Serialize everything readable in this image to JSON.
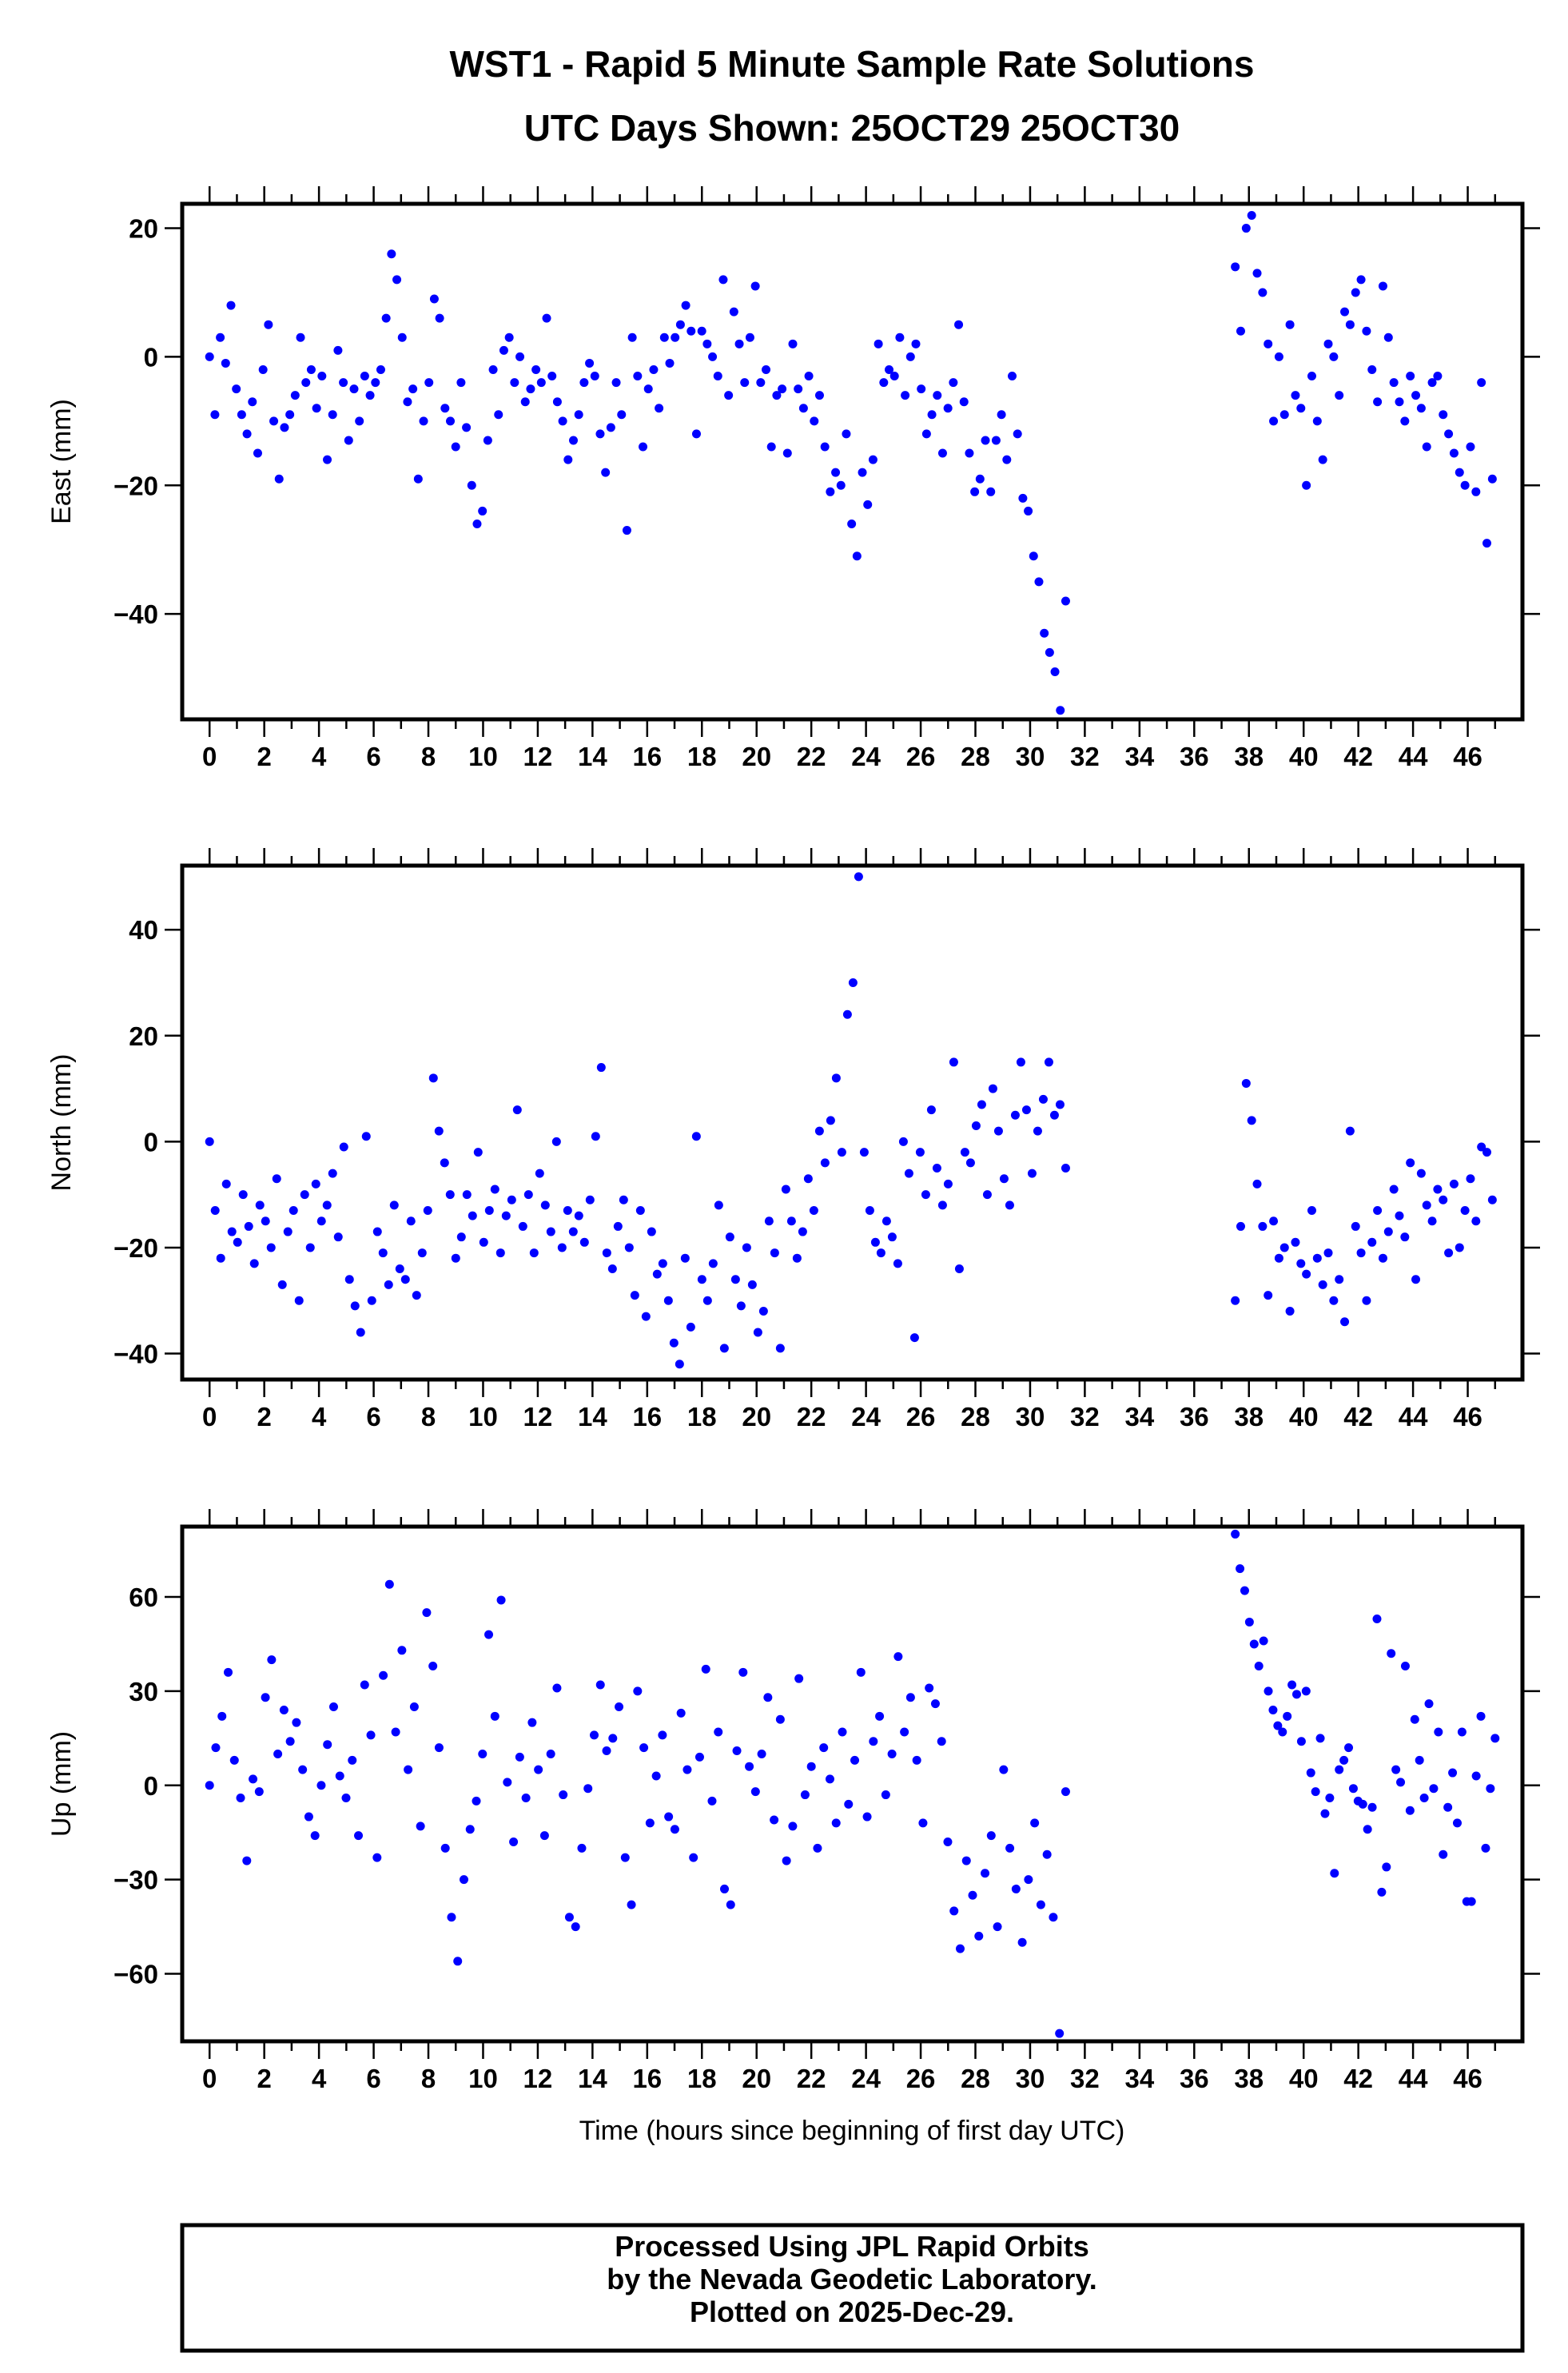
{
  "chart_data": {
    "type": "scatter",
    "title": "WST1 - Rapid 5 Minute Sample Rate Solutions",
    "subtitle": "UTC Days Shown:  25OCT29 25OCT30",
    "xlabel": "Time (hours since beginning of first day UTC)",
    "xlim": [
      -1,
      48
    ],
    "xticks": [
      0,
      2,
      4,
      6,
      8,
      10,
      12,
      14,
      16,
      18,
      20,
      22,
      24,
      26,
      28,
      30,
      32,
      34,
      36,
      38,
      40,
      42,
      44,
      46
    ],
    "point_color": "#0000ff",
    "panels": [
      {
        "name": "East",
        "ylabel": "East (mm)",
        "ylim": [
          -56.4,
          23.8
        ],
        "yticks": [
          20,
          0,
          -20,
          -40
        ],
        "segments": [
          {
            "x_start": 0,
            "x_end": 31.3,
            "y": [
              0,
              -9,
              3,
              -1,
              8,
              -5,
              -9,
              -12,
              -7,
              -15,
              -2,
              5,
              -10,
              -19,
              -11,
              -9,
              -6,
              3,
              -4,
              -2,
              -8,
              -3,
              -16,
              -9,
              1,
              -4,
              -13,
              -5,
              -10,
              -3,
              -6,
              -4,
              -2,
              6,
              16,
              12,
              3,
              -7,
              -5,
              -19,
              -10,
              -4,
              9,
              6,
              -8,
              -10,
              -14,
              -4,
              -11,
              -20,
              -26,
              -24,
              -13,
              -2,
              -9,
              1,
              3,
              -4,
              0,
              -7,
              -5,
              -2,
              -4,
              6,
              -3,
              -7,
              -10,
              -16,
              -13,
              -9,
              -4,
              -1,
              -3,
              -12,
              -18,
              -11,
              -4,
              -9,
              -27,
              3,
              -3,
              -14,
              -5,
              -2,
              -8,
              3,
              -1,
              3,
              5,
              8,
              4,
              -12,
              4,
              2,
              0,
              -3,
              12,
              -6,
              7,
              2,
              -4,
              3,
              11,
              -4,
              -2,
              -14,
              -6,
              -5,
              -15,
              2,
              -5,
              -8,
              -3,
              -10,
              -6,
              -14,
              -21,
              -18,
              -20,
              -12,
              -26,
              -31,
              -18,
              -23,
              -16,
              2,
              -4,
              -2,
              -3,
              3,
              -6,
              0,
              2,
              -5,
              -12,
              -9,
              -6,
              -15,
              -8,
              -4,
              5,
              -7,
              -15,
              -21,
              -19,
              -13,
              -21,
              -13,
              -9,
              -16,
              -3,
              -12,
              -22,
              -24,
              -31,
              -35,
              -43,
              -46,
              -49,
              -55,
              -38
            ]
          },
          {
            "x_start": 37.5,
            "x_end": 46.9,
            "y": [
              14,
              4,
              20,
              22,
              13,
              10,
              2,
              -10,
              0,
              -9,
              5,
              -6,
              -8,
              -20,
              -3,
              -10,
              -16,
              2,
              0,
              -6,
              7,
              5,
              10,
              12,
              4,
              -2,
              -7,
              11,
              3,
              -4,
              -7,
              -10,
              -3,
              -6,
              -8,
              -14,
              -4,
              -3,
              -9,
              -12,
              -15,
              -18,
              -20,
              -14,
              -21,
              -4,
              -29,
              -19
            ]
          }
        ]
      },
      {
        "name": "North",
        "ylabel": "North (mm)",
        "ylim": [
          -44.9,
          52.1
        ],
        "yticks": [
          40,
          20,
          0,
          -20,
          -40
        ],
        "segments": [
          {
            "x_start": 0,
            "x_end": 31.3,
            "y": [
              0,
              -13,
              -22,
              -8,
              -17,
              -19,
              -10,
              -16,
              -23,
              -12,
              -15,
              -20,
              -7,
              -27,
              -17,
              -13,
              -30,
              -10,
              -20,
              -8,
              -15,
              -12,
              -6,
              -18,
              -1,
              -26,
              -31,
              -36,
              1,
              -30,
              -17,
              -21,
              -27,
              -12,
              -24,
              -26,
              -15,
              -29,
              -21,
              -13,
              12,
              2,
              -4,
              -10,
              -22,
              -18,
              -10,
              -14,
              -2,
              -19,
              -13,
              -9,
              -21,
              -14,
              -11,
              6,
              -16,
              -10,
              -21,
              -6,
              -12,
              -17,
              0,
              -20,
              -13,
              -17,
              -14,
              -19,
              -11,
              1,
              14,
              -21,
              -24,
              -16,
              -11,
              -20,
              -29,
              -13,
              -33,
              -17,
              -25,
              -23,
              -30,
              -38,
              -42,
              -22,
              -35,
              1,
              -26,
              -30,
              -23,
              -12,
              -39,
              -18,
              -26,
              -31,
              -20,
              -27,
              -36,
              -32,
              -15,
              -21,
              -39,
              -9,
              -15,
              -22,
              -17,
              -7,
              -13,
              2,
              -4,
              4,
              12,
              -2,
              24,
              30,
              50,
              -2,
              -13,
              -19,
              -21,
              -15,
              -18,
              -23,
              0,
              -6,
              -37,
              -2,
              -10,
              6,
              -5,
              -12,
              -8,
              15,
              -24,
              -2,
              -4,
              3,
              7,
              -10,
              10,
              2,
              -7,
              -12,
              5,
              15,
              6,
              -6,
              2,
              8,
              15,
              5,
              7,
              -5
            ]
          },
          {
            "x_start": 37.5,
            "x_end": 46.9,
            "y": [
              -30,
              -16,
              11,
              4,
              -8,
              -16,
              -29,
              -15,
              -22,
              -20,
              -32,
              -19,
              -23,
              -25,
              -13,
              -22,
              -27,
              -21,
              -30,
              -26,
              -34,
              2,
              -16,
              -21,
              -30,
              -19,
              -13,
              -22,
              -17,
              -9,
              -14,
              -18,
              -4,
              -26,
              -6,
              -12,
              -15,
              -9,
              -11,
              -21,
              -8,
              -20,
              -13,
              -7,
              -15,
              -1,
              -2,
              -11
            ]
          }
        ]
      },
      {
        "name": "Up",
        "ylabel": "Up (mm)",
        "ylim": [
          -81.5,
          82.4
        ],
        "yticks": [
          60,
          30,
          0,
          -30,
          -60
        ],
        "segments": [
          {
            "x_start": 0,
            "x_end": 31.3,
            "y": [
              0,
              12,
              22,
              36,
              8,
              -4,
              -24,
              2,
              -2,
              28,
              40,
              10,
              24,
              14,
              20,
              5,
              -10,
              -16,
              0,
              13,
              25,
              3,
              -4,
              8,
              -16,
              32,
              16,
              -23,
              35,
              64,
              17,
              43,
              5,
              25,
              -13,
              55,
              38,
              12,
              -20,
              -42,
              -56,
              -30,
              -14,
              -5,
              10,
              48,
              22,
              59,
              1,
              -18,
              9,
              -4,
              20,
              5,
              -16,
              10,
              31,
              -3,
              -42,
              -45,
              -20,
              -1,
              16,
              32,
              11,
              15,
              25,
              -23,
              -38,
              30,
              12,
              -12,
              3,
              16,
              -10,
              -14,
              23,
              5,
              -23,
              9,
              37,
              -5,
              17,
              -33,
              -38,
              11,
              36,
              6,
              -2,
              10,
              28,
              -11,
              21,
              -24,
              -13,
              34,
              -3,
              6,
              -20,
              12,
              2,
              -12,
              17,
              -6,
              8,
              36,
              -10,
              14,
              22,
              -3,
              10,
              41,
              17,
              28,
              8,
              -12,
              31,
              26,
              14,
              -18,
              -40,
              -52,
              -24,
              -35,
              -48,
              -28,
              -16,
              -45,
              5,
              -20,
              -33,
              -50,
              -30,
              -12,
              -38,
              -22,
              -42,
              -79,
              -2
            ]
          },
          {
            "x_start": 37.5,
            "x_end": 47.0,
            "y": [
              80,
              69,
              62,
              52,
              45,
              38,
              46,
              30,
              24,
              19,
              17,
              22,
              32,
              29,
              14,
              30,
              4,
              -2,
              15,
              -9,
              -4,
              -28,
              5,
              8,
              12,
              -1,
              -5,
              -6,
              -14,
              -7,
              53,
              -34,
              -26,
              42,
              5,
              1,
              38,
              -8,
              21,
              8,
              -4,
              26,
              -1,
              17,
              -22,
              -7,
              4,
              -12,
              17,
              -37,
              -37,
              3,
              22,
              -20,
              -1,
              15
            ]
          }
        ]
      }
    ]
  },
  "footer": {
    "lines": [
      "Processed Using JPL Rapid Orbits",
      "by the Nevada Geodetic Laboratory.",
      "Plotted on 2025-Dec-29."
    ]
  }
}
